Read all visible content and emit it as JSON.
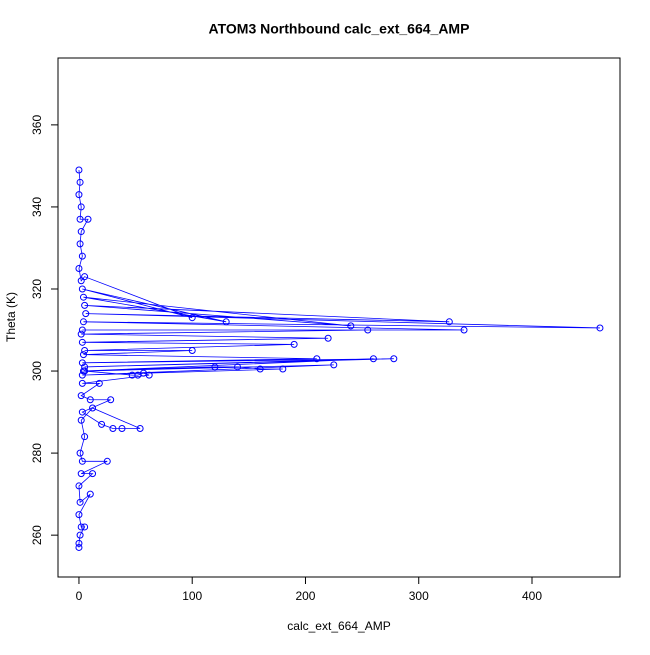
{
  "chart_data": {
    "type": "line",
    "marker": "open-circle",
    "title": "ATOM3 Northbound calc_ext_664_AMP",
    "x_label": "calc_ext_664_AMP",
    "y_label": "Theta (K)",
    "xlim": [
      -18.5,
      477.7
    ],
    "ylim": [
      249.8,
      376.3
    ],
    "xticks": [
      0,
      100,
      200,
      300,
      400
    ],
    "yticks": [
      260,
      280,
      300,
      320,
      340,
      360
    ],
    "x": [
      0,
      1,
      0,
      2,
      1,
      8,
      2,
      1,
      3,
      0,
      2,
      5,
      100,
      3,
      130,
      4,
      240,
      5,
      327,
      6,
      460,
      4,
      340,
      3,
      255,
      2,
      220,
      3,
      190,
      5,
      100,
      4,
      210,
      3,
      278,
      5,
      260,
      4,
      225,
      3,
      180,
      160,
      140,
      120,
      5,
      47,
      52,
      57,
      62,
      3,
      18,
      2,
      10,
      28,
      3,
      20,
      30,
      38,
      54,
      12,
      2,
      5,
      1,
      3,
      25,
      2,
      12,
      0,
      1,
      10,
      0,
      2,
      5,
      1,
      0,
      0
    ],
    "series": [
      {
        "color": "#0000ff",
        "values": [
          349,
          346,
          343,
          340,
          337,
          337,
          334,
          331,
          328,
          325,
          322,
          323,
          313,
          320,
          312,
          318,
          311,
          316,
          312,
          314,
          310.5,
          312,
          310,
          310,
          310,
          309,
          308,
          307,
          306.5,
          305,
          305,
          304,
          303,
          302,
          303,
          301,
          303,
          300,
          301.5,
          299,
          300.5,
          300.5,
          301,
          301,
          300,
          299,
          299,
          299.5,
          299,
          297,
          297,
          294,
          293,
          293,
          290,
          287,
          286,
          286,
          286,
          291,
          288,
          284,
          280,
          278,
          278,
          275,
          275,
          272,
          268,
          270,
          265,
          262,
          262,
          260,
          258,
          257
        ]
      }
    ]
  }
}
